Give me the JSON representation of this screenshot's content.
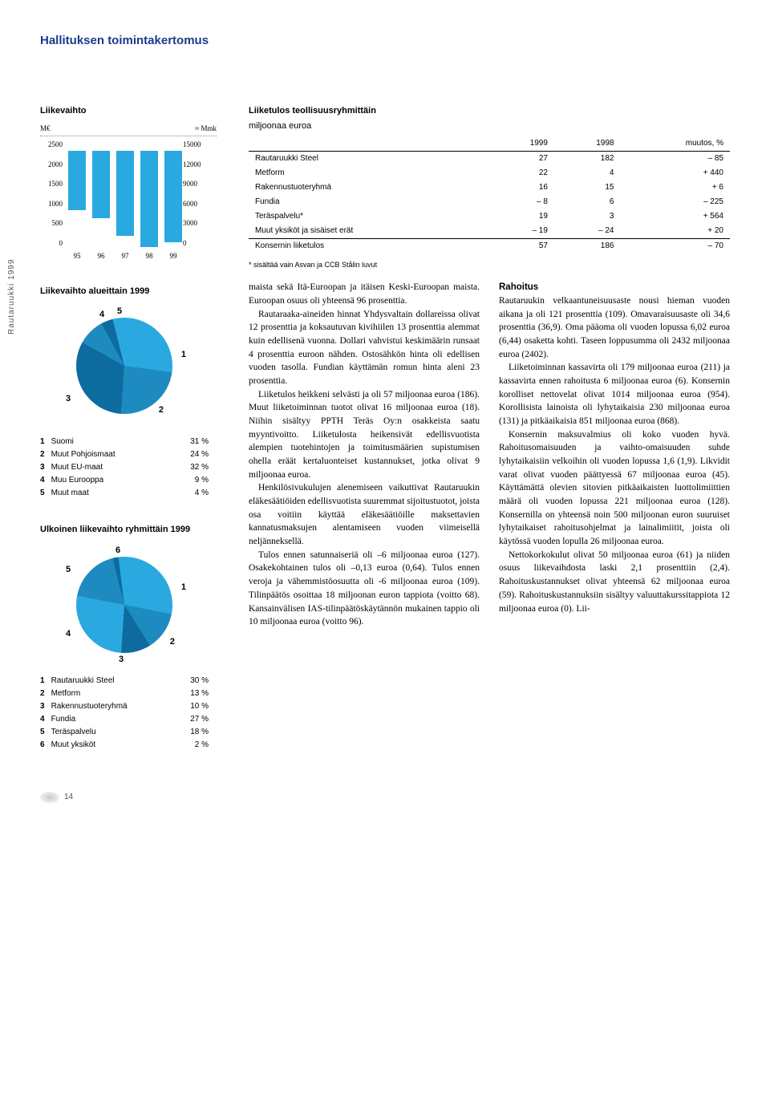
{
  "page": {
    "title": "Hallituksen toimintakertomus",
    "number": "14",
    "sideLabel": "Rautaruukki 1999"
  },
  "barChart": {
    "title": "Liikevaihto",
    "leftUnit": "M€",
    "rightUnit": "≈ Mmk",
    "yLeft": [
      "2500",
      "2000",
      "1500",
      "1000",
      "500",
      "0"
    ],
    "yRight": [
      "15000",
      "12000",
      "9000",
      "6000",
      "3000",
      "0"
    ],
    "xLabels": [
      "95",
      "96",
      "97",
      "98",
      "99"
    ],
    "heights": [
      74,
      84,
      106,
      120,
      114
    ]
  },
  "pie1": {
    "title": "Liikevaihto alueittain 1999",
    "labels": {
      "l1": "1",
      "l2": "2",
      "l3": "3",
      "l4": "4",
      "l5": "5"
    },
    "legend": [
      {
        "n": "1",
        "name": "Suomi",
        "pct": "31 %"
      },
      {
        "n": "2",
        "name": "Muut Pohjoismaat",
        "pct": "24 %"
      },
      {
        "n": "3",
        "name": "Muut EU-maat",
        "pct": "32 %"
      },
      {
        "n": "4",
        "name": "Muu Eurooppa",
        "pct": "9 %"
      },
      {
        "n": "5",
        "name": "Muut maat",
        "pct": "4 %"
      }
    ],
    "gradient": "conic-gradient(from -14deg, #2aa9e0 0% 31%, #1e8bc0 31% 55%, #0e6ba0 55% 87%, #1e8bc0 87% 96%, #0e6ba0 96% 100%)"
  },
  "pie2": {
    "title": "Ulkoinen liikevaihto ryhmittäin 1999",
    "labels": {
      "l1": "1",
      "l2": "2",
      "l3": "3",
      "l4": "4",
      "l5": "5",
      "l6": "6"
    },
    "legend": [
      {
        "n": "1",
        "name": "Rautaruukki Steel",
        "pct": "30 %"
      },
      {
        "n": "2",
        "name": "Metform",
        "pct": "13 %"
      },
      {
        "n": "3",
        "name": "Rakennustuoteryhmä",
        "pct": "10 %"
      },
      {
        "n": "4",
        "name": "Fundia",
        "pct": "27 %"
      },
      {
        "n": "5",
        "name": "Teräspalvelu",
        "pct": "18 %"
      },
      {
        "n": "6",
        "name": "Muut yksiköt",
        "pct": "2 %"
      }
    ],
    "gradient": "conic-gradient(from -7deg, #2aa9e0 0% 30%, #1e8bc0 30% 43%, #0e6ba0 43% 53%, #2aa9e0 53% 80%, #1e8bc0 80% 98%, #0e6ba0 98% 100%)"
  },
  "table": {
    "title1": "Liiketulos teollisuusryhmittäin",
    "title2": "miljoonaa euroa",
    "head": [
      "",
      "1999",
      "1998",
      "muutos, %"
    ],
    "rows": [
      [
        "Rautaruukki Steel",
        "27",
        "182",
        "– 85"
      ],
      [
        "Metform",
        "22",
        "4",
        "+ 440"
      ],
      [
        "Rakennustuoteryhmä",
        "16",
        "15",
        "+ 6"
      ],
      [
        "Fundia",
        "– 8",
        "6",
        "– 225"
      ],
      [
        "Teräspalvelu*",
        "19",
        "3",
        "+ 564"
      ],
      [
        "Muut yksiköt ja sisäiset erät",
        "– 19",
        "– 24",
        "+ 20"
      ]
    ],
    "total": [
      "Konsernin liiketulos",
      "57",
      "186",
      "– 70"
    ],
    "footnote": "* sisältää vain Asvan ja CCB Stålin luvut"
  },
  "body": {
    "p1a": "maista sekä Itä-Euroopan ja itäisen Keski-Euroopan maista. Euroopan osuus oli yhteensä 96 prosenttia.",
    "p1b": "Rautaraaka-aineiden hinnat Yhdysvaltain dollareissa olivat 12 prosenttia ja koksautuvan kivihiilen 13 prosenttia alemmat kuin edellisenä vuonna. Dollari vahvistui keskimäärin runsaat 4 prosenttia euroon nähden. Ostosähkön hinta oli edellisen vuoden tasolla. Fundian käyttämän romun hinta aleni 23 prosenttia.",
    "p1c": "Liiketulos heikkeni selvästi ja oli 57 miljoonaa euroa (186). Muut liiketoiminnan tuotot olivat 16 miljoonaa euroa (18). Niihin sisältyy PPTH Teräs Oy:n osakkeista saatu myyntivoitto. Liiketulosta heikensivät edellisvuotista alempien tuotehintojen ja toimitusmäärien supistumisen ohella eräät kertaluonteiset kustannukset, jotka olivat 9 miljoonaa euroa.",
    "p1d": "Henkilösivukulujen alenemiseen vaikuttivat Rautaruukin eläkesäätiöiden edellisvuotista suuremmat sijoitustuotot, joista osa voitiin käyttää eläkesäätiöille maksettavien kannatusmaksujen alentamiseen vuoden viimeisellä neljänneksellä.",
    "p1e": "Tulos ennen satunnaiseriä oli –6 miljoonaa euroa (127). Osakekohtainen tulos oli –0,13 euroa (0,64). Tulos ennen veroja ja vähemmistöosuutta oli -6 miljoonaa euroa (109). Tilinpäätös osoittaa 18 miljoonan euron tappiota (voitto 68). Kansainvälisen IAS-tilinpäätöskäytännön mukainen tappio oli 10 miljoonaa euroa (voitto 96).",
    "h2": "Rahoitus",
    "p2a": "Rautaruukin velkaantuneisuusaste nousi hieman vuoden aikana ja oli 121 prosenttia (109). Omavaraisuusaste oli 34,6 prosenttia (36,9). Oma pääoma oli vuoden lopussa 6,02 euroa (6,44) osaketta kohti. Taseen loppusumma oli 2432 miljoonaa euroa (2402).",
    "p2b": "Liiketoiminnan kassavirta oli 179 miljoonaa euroa (211) ja kassavirta ennen rahoitusta 6 miljoonaa euroa (6). Konsernin korolliset nettovelat olivat 1014 miljoonaa euroa (954). Korollisista lainoista oli lyhytaikaisia 230 miljoonaa euroa (131) ja pitkäaikaisia 851 miljoonaa euroa (868).",
    "p2c": "Konsernin maksuvalmius oli koko vuoden hyvä. Rahoitusomaisuuden ja vaihto-omaisuuden suhde lyhytaikaisiin velkoihin oli vuoden lopussa 1,6 (1,9). Likvidit varat olivat vuoden päättyessä 67 miljoonaa euroa (45). Käyttämättä olevien sitovien pitkäaikaisten luottolimiittien määrä oli vuoden lopussa 221 miljoonaa euroa (128). Konsernilla on yhteensä noin 500 miljoonan euron suuruiset lyhytaikaiset rahoitusohjelmat ja lainalimiitit, joista oli käytössä vuoden lopulla 26 miljoonaa euroa.",
    "p2d": "Nettokorkokulut olivat 50 miljoonaa euroa (61) ja niiden osuus liikevaihdosta laski 2,1 prosenttiin (2,4). Rahoituskustannukset olivat yhteensä 62 miljoonaa euroa (59). Rahoituskustannuksiin sisältyy valuuttakurssitappiota 12 miljoonaa euroa (0). Lii-"
  }
}
